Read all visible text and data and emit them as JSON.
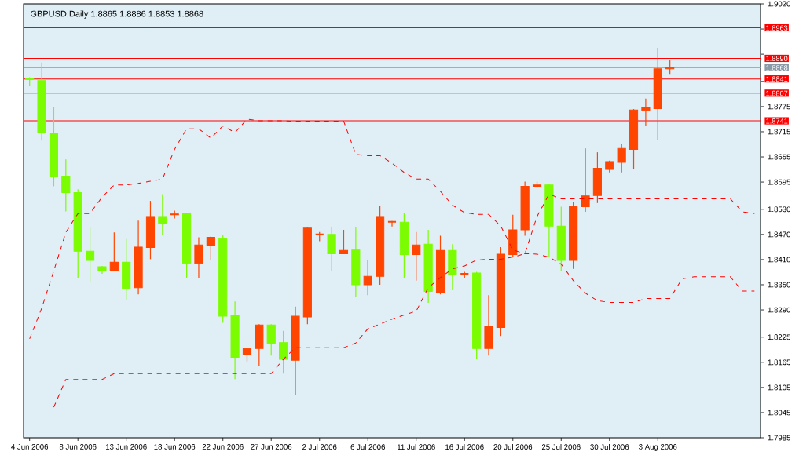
{
  "chart_data": {
    "type": "candlestick",
    "title": "GBPUSD,Daily  1.8865 1.8886 1.8853 1.8868",
    "categories": [
      "4 Jun 2006",
      null,
      null,
      null,
      "8 Jun 2006",
      null,
      null,
      null,
      "13 Jun 2006",
      null,
      null,
      null,
      "18 Jun 2006",
      null,
      null,
      null,
      "22 Jun 2006",
      null,
      null,
      null,
      "27 Jun 2006",
      null,
      null,
      null,
      "2 Jul 2006",
      null,
      null,
      null,
      "6 Jul 2006",
      null,
      null,
      null,
      "11 Jul 2006",
      null,
      null,
      null,
      "16 Jul 2006",
      null,
      null,
      null,
      "20 Jul 2006",
      null,
      null,
      null,
      "25 Jul 2006",
      null,
      null,
      null,
      "30 Jul 2006",
      null,
      null,
      null,
      "3 Aug 2006",
      null,
      null,
      null,
      null,
      null,
      null,
      null,
      null
    ],
    "ohlc": [
      [
        1.8843,
        1.8845,
        1.8825,
        1.884
      ],
      [
        1.8837,
        1.888,
        1.8694,
        1.8712
      ],
      [
        1.8712,
        1.8774,
        1.8585,
        1.8609
      ],
      [
        1.8609,
        1.8649,
        1.8525,
        1.857
      ],
      [
        1.857,
        1.8578,
        1.8367,
        1.843
      ],
      [
        1.843,
        1.8486,
        1.8358,
        1.8408
      ],
      [
        1.8393,
        1.8395,
        1.8376,
        1.8383
      ],
      [
        1.8383,
        1.8475,
        1.8383,
        1.8404
      ],
      [
        1.8404,
        1.8459,
        1.8314,
        1.8341
      ],
      [
        1.8343,
        1.8503,
        1.8327,
        1.844
      ],
      [
        1.8439,
        1.855,
        1.8411,
        1.8513
      ],
      [
        1.8513,
        1.8566,
        1.8468,
        1.8496
      ],
      [
        1.8517,
        1.8527,
        1.8508,
        1.8519
      ],
      [
        1.852,
        1.8522,
        1.8365,
        1.8401
      ],
      [
        1.8401,
        1.8463,
        1.8365,
        1.8445
      ],
      [
        1.8443,
        1.8465,
        1.8409,
        1.8463
      ],
      [
        1.846,
        1.8468,
        1.8259,
        1.8275
      ],
      [
        1.8277,
        1.831,
        1.8125,
        1.8177
      ],
      [
        1.8183,
        1.82,
        1.8167,
        1.8198
      ],
      [
        1.8198,
        1.8256,
        1.8157,
        1.8254
      ],
      [
        1.8254,
        1.8256,
        1.8181,
        1.821
      ],
      [
        1.8212,
        1.824,
        1.8138,
        1.8172
      ],
      [
        1.817,
        1.8298,
        1.8087,
        1.8275
      ],
      [
        1.8273,
        1.8487,
        1.8256,
        1.8485
      ],
      [
        1.847,
        1.8476,
        1.8454,
        1.847
      ],
      [
        1.847,
        1.8487,
        1.8383,
        1.8424
      ],
      [
        1.8424,
        1.8481,
        1.8423,
        1.8432
      ],
      [
        1.8433,
        1.8487,
        1.8322,
        1.835
      ],
      [
        1.835,
        1.8409,
        1.8325,
        1.837
      ],
      [
        1.837,
        1.8539,
        1.835,
        1.8513
      ],
      [
        1.85,
        1.8502,
        1.8489,
        1.85
      ],
      [
        1.8499,
        1.8522,
        1.8365,
        1.8422
      ],
      [
        1.8422,
        1.8476,
        1.836,
        1.8445
      ],
      [
        1.8447,
        1.8481,
        1.8307,
        1.8334
      ],
      [
        1.8332,
        1.8467,
        1.8327,
        1.8432
      ],
      [
        1.8432,
        1.8447,
        1.8337,
        1.8374
      ],
      [
        1.8376,
        1.8381,
        1.8367,
        1.8376
      ],
      [
        1.8378,
        1.8381,
        1.8174,
        1.8198
      ],
      [
        1.8198,
        1.8325,
        1.8181,
        1.825
      ],
      [
        1.8248,
        1.844,
        1.8228,
        1.8423
      ],
      [
        1.8422,
        1.8517,
        1.8416,
        1.8481
      ],
      [
        1.8481,
        1.8596,
        1.8467,
        1.8585
      ],
      [
        1.8583,
        1.8596,
        1.8581,
        1.8588
      ],
      [
        1.8588,
        1.859,
        1.8415,
        1.849
      ],
      [
        1.849,
        1.8536,
        1.8383,
        1.8408
      ],
      [
        1.8408,
        1.8548,
        1.8388,
        1.8537
      ],
      [
        1.8536,
        1.8675,
        1.8524,
        1.8562
      ],
      [
        1.8563,
        1.8666,
        1.8545,
        1.8628
      ],
      [
        1.8625,
        1.8646,
        1.8618,
        1.8644
      ],
      [
        1.8642,
        1.8687,
        1.8618,
        1.8675
      ],
      [
        1.8673,
        1.8769,
        1.8625,
        1.8767
      ],
      [
        1.8766,
        1.8794,
        1.8728,
        1.8772
      ],
      [
        1.877,
        1.8915,
        1.8696,
        1.8865
      ],
      [
        1.8865,
        1.8886,
        1.8853,
        1.8868
      ],
      null,
      null,
      null,
      null,
      null,
      null,
      null
    ],
    "colors": [
      "#7cfc00",
      "#7cfc00",
      "#7cfc00",
      "#7cfc00",
      "#7cfc00",
      "#7cfc00",
      "#7cfc00",
      "#ff4500",
      "#7cfc00",
      "#ff4500",
      "#ff4500",
      "#7cfc00",
      "#ff4500",
      "#7cfc00",
      "#ff4500",
      "#ff4500",
      "#7cfc00",
      "#7cfc00",
      "#ff4500",
      "#ff4500",
      "#7cfc00",
      "#7cfc00",
      "#ff4500",
      "#ff4500",
      "#ff4500",
      "#7cfc00",
      "#ff4500",
      "#7cfc00",
      "#ff4500",
      "#ff4500",
      "#ff4500",
      "#7cfc00",
      "#ff4500",
      "#7cfc00",
      "#ff4500",
      "#7cfc00",
      "#ff4500",
      "#7cfc00",
      "#ff4500",
      "#ff4500",
      "#ff4500",
      "#ff4500",
      "#ff4500",
      "#7cfc00",
      "#7cfc00",
      "#ff4500",
      "#ff4500",
      "#ff4500",
      "#ff4500",
      "#ff4500",
      "#ff4500",
      "#ff4500",
      "#ff4500",
      "#ff4500",
      null,
      null,
      null,
      null,
      null,
      null,
      null
    ],
    "series": [
      {
        "type": "line",
        "color": "#ff0000",
        "line_style": "dashed",
        "values": [
          1.8221,
          1.8294,
          1.8383,
          1.8475,
          1.852,
          1.852,
          1.8559,
          1.8588,
          1.8588,
          1.8592,
          1.8597,
          1.8602,
          1.8673,
          1.8722,
          1.8722,
          1.87,
          1.8729,
          1.8713,
          1.8745,
          1.8741,
          1.8741,
          1.8741,
          1.874,
          1.874,
          1.874,
          1.874,
          1.874,
          1.8661,
          1.8658,
          1.8658,
          1.864,
          1.8618,
          1.8602,
          1.8602,
          1.8573,
          1.854,
          1.8522,
          1.8518,
          1.8518,
          1.849,
          1.8433,
          1.8424,
          1.8423,
          1.8416,
          1.8399,
          1.836,
          1.833,
          1.8312,
          1.8308,
          1.8308,
          1.8308,
          1.8317,
          1.8317,
          1.8317,
          1.8364,
          1.8369,
          1.8369,
          1.8369,
          1.8369,
          1.8335,
          1.8335
        ]
      },
      {
        "type": "line",
        "color": "#ff0000",
        "line_style": "dashed",
        "values": [
          null,
          null,
          1.8058,
          1.8124,
          1.8124,
          1.8124,
          1.8124,
          1.8138,
          1.8138,
          1.8138,
          1.8138,
          1.8138,
          1.8138,
          1.8138,
          1.8138,
          1.8138,
          1.8138,
          1.8138,
          1.8138,
          1.8138,
          1.8138,
          1.8172,
          1.82,
          1.82,
          1.82,
          1.82,
          1.82,
          1.8211,
          1.8245,
          1.8256,
          1.8268,
          1.8278,
          1.8287,
          1.8343,
          1.8367,
          1.8388,
          1.8395,
          1.8409,
          1.8411,
          1.8411,
          1.8416,
          1.8424,
          1.8513,
          1.8566,
          1.8555,
          1.8555,
          1.8555,
          1.8555,
          1.8555,
          1.8555,
          1.8555,
          1.8555,
          1.8555,
          1.8555,
          1.8555,
          1.8555,
          1.8555,
          1.8555,
          1.8555,
          1.8524,
          1.852
        ]
      }
    ],
    "ylim": [
      1.7985,
      1.902
    ],
    "yticks": [
      {
        "value": 1.902,
        "label": "1.9020"
      },
      {
        "value": 1.896,
        "label": null
      },
      {
        "value": 1.89,
        "label": null
      },
      {
        "value": 1.8835,
        "label": null
      },
      {
        "value": 1.8775,
        "label": "1.8775"
      },
      {
        "value": 1.8715,
        "label": "1.8715"
      },
      {
        "value": 1.8655,
        "label": "1.8655"
      },
      {
        "value": 1.8595,
        "label": "1.8595"
      },
      {
        "value": 1.853,
        "label": "1.8530"
      },
      {
        "value": 1.847,
        "label": "1.8470"
      },
      {
        "value": 1.841,
        "label": "1.8410"
      },
      {
        "value": 1.835,
        "label": "1.8350"
      },
      {
        "value": 1.829,
        "label": "1.8290"
      },
      {
        "value": 1.8225,
        "label": "1.8225"
      },
      {
        "value": 1.8165,
        "label": "1.8165"
      },
      {
        "value": 1.8105,
        "label": "1.8105"
      },
      {
        "value": 1.8045,
        "label": "1.8045"
      },
      {
        "value": 1.7985,
        "label": "1.7985"
      }
    ],
    "ref_lines": [
      {
        "axis": "y",
        "value": 1.8963,
        "label": "1.8963",
        "color": "#ff0000"
      },
      {
        "axis": "y",
        "value": 1.889,
        "label": "1.8890",
        "color": "#ff0000"
      },
      {
        "axis": "y",
        "value": 1.8868,
        "label": "1.8868",
        "color": "#8a99a8"
      },
      {
        "axis": "y",
        "value": 1.8841,
        "label": "1.8841",
        "color": "#ff0000"
      },
      {
        "axis": "y",
        "value": 1.8807,
        "label": "1.8807",
        "color": "#ff0000"
      },
      {
        "axis": "y",
        "value": 1.8741,
        "label": "1.8741",
        "color": "#ff0000"
      }
    ]
  }
}
